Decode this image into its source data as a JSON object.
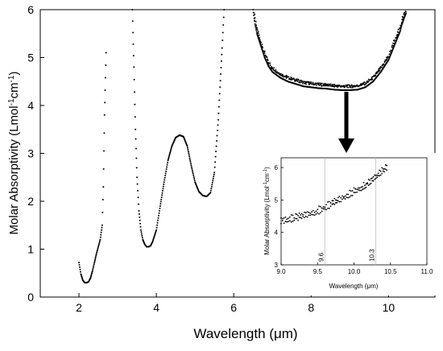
{
  "chart_data": [
    {
      "type": "scatter",
      "xlabel": "Wavelength (",
      "xlabel_mu": "μ",
      "xlabel_unit": "m)",
      "ylabel": "Molar Absorptivity (Lmol",
      "ylabel_exp1": "-1",
      "ylabel_mid": "cm",
      "ylabel_exp2": "-1",
      "ylabel_end": ")",
      "xlim": [
        1,
        11.2
      ],
      "ylim": [
        0,
        6
      ],
      "x_ticks": [
        2,
        4,
        6,
        8,
        10
      ],
      "x_tick_labels": [
        "2",
        "4",
        "6",
        "8",
        "10"
      ],
      "y_ticks": [
        0,
        1,
        2,
        3,
        4,
        5,
        6
      ],
      "y_tick_labels": [
        "0",
        "1",
        "2",
        "3",
        "4",
        "5",
        "6"
      ],
      "grid": false,
      "series": [
        {
          "x": [
            2.0,
            2.05,
            2.1,
            2.15,
            2.2,
            2.25,
            2.3,
            2.35,
            2.4,
            2.45,
            2.5,
            2.55,
            2.6,
            2.63,
            2.66,
            2.7
          ],
          "y": [
            0.72,
            0.48,
            0.35,
            0.3,
            0.3,
            0.32,
            0.4,
            0.55,
            0.72,
            0.9,
            1.05,
            1.2,
            1.5,
            2.3,
            3.8,
            5.1
          ]
        },
        {
          "x": [
            3.38,
            3.42,
            3.46,
            3.5,
            3.55,
            3.6,
            3.65,
            3.7,
            3.75,
            3.8,
            3.85,
            3.9,
            4.0,
            4.1,
            4.2,
            4.3,
            4.4,
            4.5,
            4.6,
            4.7,
            4.8,
            4.9,
            5.0,
            5.1,
            5.2,
            5.3,
            5.4,
            5.5,
            5.6,
            5.7,
            5.75
          ],
          "y": [
            6.0,
            4.8,
            3.5,
            2.5,
            1.8,
            1.4,
            1.2,
            1.1,
            1.05,
            1.05,
            1.07,
            1.15,
            1.4,
            1.9,
            2.4,
            2.85,
            3.15,
            3.33,
            3.38,
            3.35,
            3.15,
            2.75,
            2.4,
            2.2,
            2.12,
            2.1,
            2.18,
            2.6,
            3.7,
            5.2,
            6.0
          ]
        },
        {
          "x": [
            6.5,
            6.55,
            6.6,
            6.7,
            6.8,
            6.9,
            7.0,
            7.2,
            7.4,
            7.6,
            7.8,
            8.0,
            8.2,
            8.4,
            8.6,
            8.8,
            9.0,
            9.2,
            9.4,
            9.6,
            9.8,
            10.0,
            10.1,
            10.2,
            10.3,
            10.35,
            10.4,
            10.45
          ],
          "y": [
            6.0,
            5.7,
            5.5,
            5.25,
            5.0,
            4.82,
            4.7,
            4.58,
            4.5,
            4.45,
            4.4,
            4.38,
            4.36,
            4.35,
            4.33,
            4.32,
            4.32,
            4.33,
            4.38,
            4.5,
            4.7,
            4.95,
            5.15,
            5.35,
            5.55,
            5.7,
            5.82,
            5.92
          ]
        }
      ],
      "annotation": "arrow from the 10 μm region down to inset"
    },
    {
      "type": "scatter",
      "role": "inset",
      "xlabel": "Wavelength (",
      "xlabel_mu": "μ",
      "xlabel_unit": "m)",
      "ylabel": "Molar Absorptivity (Lmol",
      "ylabel_exp1": "-1",
      "ylabel_mid": "cm",
      "ylabel_exp2": "-1",
      "ylabel_end": ")",
      "xlim": [
        9.0,
        11.0
      ],
      "ylim": [
        3,
        6.3
      ],
      "x_ticks": [
        9.0,
        9.5,
        10.0,
        10.5,
        11.0
      ],
      "x_tick_labels": [
        "9.0",
        "9.5",
        "10.0",
        "10.5",
        "11.0"
      ],
      "y_ticks": [
        3,
        4,
        5,
        6
      ],
      "y_tick_labels": [
        "3",
        "4",
        "5",
        "6"
      ],
      "vlines": [
        {
          "x": 9.6,
          "label": "9.6"
        },
        {
          "x": 10.3,
          "label": "10.3"
        }
      ],
      "series": [
        {
          "x": [
            9.0,
            9.1,
            9.2,
            9.3,
            9.4,
            9.5,
            9.6,
            9.7,
            9.8,
            9.9,
            10.0,
            10.1,
            10.15,
            10.2,
            10.25,
            10.3,
            10.35,
            10.4,
            10.45
          ],
          "y": [
            4.32,
            4.34,
            4.38,
            4.45,
            4.52,
            4.6,
            4.7,
            4.82,
            4.95,
            5.08,
            5.2,
            5.32,
            5.4,
            5.5,
            5.58,
            5.68,
            5.78,
            5.88,
            5.95
          ]
        }
      ]
    }
  ]
}
